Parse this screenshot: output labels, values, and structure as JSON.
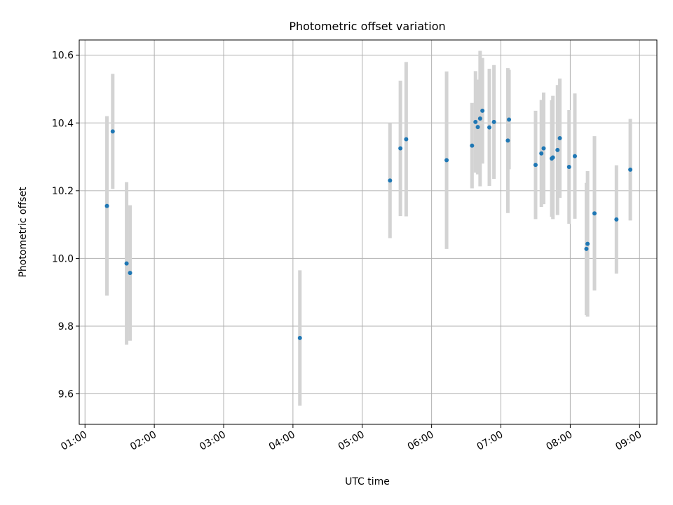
{
  "chart_data": {
    "type": "scatter",
    "title": "Photometric offset variation",
    "xlabel": "UTC time",
    "ylabel": "Photometric offset",
    "xlim": [
      "00:55",
      "09:15"
    ],
    "ylim": [
      9.51,
      10.645
    ],
    "x_ticks": [
      "01:00",
      "02:00",
      "03:00",
      "04:00",
      "05:00",
      "06:00",
      "07:00",
      "08:00",
      "09:00"
    ],
    "y_ticks": [
      9.6,
      9.8,
      10.0,
      10.2,
      10.4,
      10.6
    ],
    "y_tick_labels": [
      "9.6",
      "9.8",
      "10.0",
      "10.2",
      "10.4",
      "10.6"
    ],
    "grid": true,
    "colors": {
      "point": "#1f77b4",
      "errorbar": "#d3d3d3",
      "grid": "#b0b0b0"
    },
    "points": [
      {
        "t": "01:19",
        "y": 10.155,
        "err": 0.265
      },
      {
        "t": "01:24",
        "y": 10.375,
        "err": 0.17
      },
      {
        "t": "01:36",
        "y": 9.985,
        "err": 0.24
      },
      {
        "t": "01:39",
        "y": 9.957,
        "err": 0.2
      },
      {
        "t": "04:06",
        "y": 9.765,
        "err": 0.2
      },
      {
        "t": "05:24",
        "y": 10.23,
        "err": 0.17
      },
      {
        "t": "05:33",
        "y": 10.325,
        "err": 0.2
      },
      {
        "t": "05:38",
        "y": 10.352,
        "err": 0.228
      },
      {
        "t": "06:13",
        "y": 10.29,
        "err": 0.262
      },
      {
        "t": "06:35",
        "y": 10.333,
        "err": 0.126
      },
      {
        "t": "06:38",
        "y": 10.403,
        "err": 0.15
      },
      {
        "t": "06:40",
        "y": 10.388,
        "err": 0.14
      },
      {
        "t": "06:42",
        "y": 10.413,
        "err": 0.2
      },
      {
        "t": "06:44",
        "y": 10.436,
        "err": 0.156
      },
      {
        "t": "06:50",
        "y": 10.387,
        "err": 0.173
      },
      {
        "t": "06:54",
        "y": 10.403,
        "err": 0.168
      },
      {
        "t": "07:06",
        "y": 10.348,
        "err": 0.214
      },
      {
        "t": "07:07",
        "y": 10.41,
        "err": 0.147
      },
      {
        "t": "07:30",
        "y": 10.276,
        "err": 0.16
      },
      {
        "t": "07:35",
        "y": 10.31,
        "err": 0.158
      },
      {
        "t": "07:37",
        "y": 10.325,
        "err": 0.165
      },
      {
        "t": "07:44",
        "y": 10.295,
        "err": 0.172
      },
      {
        "t": "07:45",
        "y": 10.298,
        "err": 0.182
      },
      {
        "t": "07:49",
        "y": 10.32,
        "err": 0.192
      },
      {
        "t": "07:51",
        "y": 10.355,
        "err": 0.176
      },
      {
        "t": "07:59",
        "y": 10.27,
        "err": 0.168
      },
      {
        "t": "08:04",
        "y": 10.302,
        "err": 0.185
      },
      {
        "t": "08:14",
        "y": 10.028,
        "err": 0.195
      },
      {
        "t": "08:15",
        "y": 10.043,
        "err": 0.215
      },
      {
        "t": "08:21",
        "y": 10.133,
        "err": 0.228
      },
      {
        "t": "08:40",
        "y": 10.115,
        "err": 0.16
      },
      {
        "t": "08:52",
        "y": 10.262,
        "err": 0.15
      }
    ]
  }
}
